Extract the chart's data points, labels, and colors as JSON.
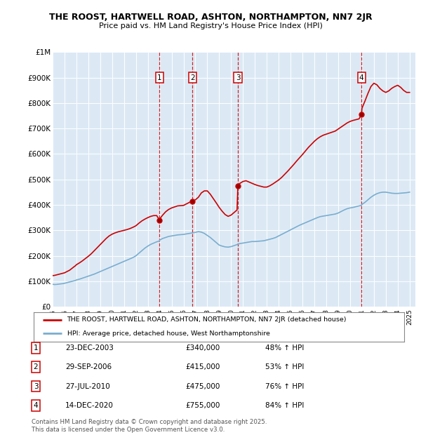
{
  "title1": "THE ROOST, HARTWELL ROAD, ASHTON, NORTHAMPTON, NN7 2JR",
  "title2": "Price paid vs. HM Land Registry's House Price Index (HPI)",
  "ylim": [
    0,
    1000000
  ],
  "yticks": [
    0,
    100000,
    200000,
    300000,
    400000,
    500000,
    600000,
    700000,
    800000,
    900000,
    1000000
  ],
  "ytick_labels": [
    "£0",
    "£100K",
    "£200K",
    "£300K",
    "£400K",
    "£500K",
    "£600K",
    "£700K",
    "£800K",
    "£900K",
    "£1M"
  ],
  "xlim_start": 1995.0,
  "xlim_end": 2025.5,
  "plot_bg_color": "#dce9f5",
  "fig_bg_color": "#ffffff",
  "red_line_color": "#cc0000",
  "blue_line_color": "#7aadcf",
  "sale_dates": [
    2003.98,
    2006.75,
    2010.57,
    2020.96
  ],
  "sale_prices": [
    340000,
    415000,
    475000,
    755000
  ],
  "sale_labels": [
    "1",
    "2",
    "3",
    "4"
  ],
  "sale_date_strs": [
    "23-DEC-2003",
    "29-SEP-2006",
    "27-JUL-2010",
    "14-DEC-2020"
  ],
  "sale_pct": [
    "48% ↑ HPI",
    "53% ↑ HPI",
    "76% ↑ HPI",
    "84% ↑ HPI"
  ],
  "legend_label_red": "THE ROOST, HARTWELL ROAD, ASHTON, NORTHAMPTON, NN7 2JR (detached house)",
  "legend_label_blue": "HPI: Average price, detached house, West Northamptonshire",
  "footer": "Contains HM Land Registry data © Crown copyright and database right 2025.\nThis data is licensed under the Open Government Licence v3.0.",
  "hpi_x": [
    1995.0,
    1995.08,
    1995.17,
    1995.25,
    1995.33,
    1995.42,
    1995.5,
    1995.58,
    1995.67,
    1995.75,
    1995.83,
    1995.92,
    1996.0,
    1996.08,
    1996.17,
    1996.25,
    1996.33,
    1996.42,
    1996.5,
    1996.58,
    1996.67,
    1996.75,
    1996.83,
    1996.92,
    1997.0,
    1997.25,
    1997.5,
    1997.75,
    1998.0,
    1998.25,
    1998.5,
    1998.75,
    1999.0,
    1999.25,
    1999.5,
    1999.75,
    2000.0,
    2000.25,
    2000.5,
    2000.75,
    2001.0,
    2001.25,
    2001.5,
    2001.75,
    2002.0,
    2002.25,
    2002.5,
    2002.75,
    2003.0,
    2003.25,
    2003.5,
    2003.75,
    2003.98,
    2004.0,
    2004.25,
    2004.5,
    2004.75,
    2005.0,
    2005.25,
    2005.5,
    2005.75,
    2006.0,
    2006.25,
    2006.5,
    2006.75,
    2007.0,
    2007.25,
    2007.5,
    2007.75,
    2008.0,
    2008.25,
    2008.5,
    2008.75,
    2009.0,
    2009.25,
    2009.5,
    2009.75,
    2010.0,
    2010.25,
    2010.5,
    2010.57,
    2010.75,
    2011.0,
    2011.25,
    2011.5,
    2011.75,
    2012.0,
    2012.25,
    2012.5,
    2012.75,
    2013.0,
    2013.25,
    2013.5,
    2013.75,
    2014.0,
    2014.25,
    2014.5,
    2014.75,
    2015.0,
    2015.25,
    2015.5,
    2015.75,
    2016.0,
    2016.25,
    2016.5,
    2016.75,
    2017.0,
    2017.25,
    2017.5,
    2017.75,
    2018.0,
    2018.25,
    2018.5,
    2018.75,
    2019.0,
    2019.25,
    2019.5,
    2019.75,
    2020.0,
    2020.25,
    2020.5,
    2020.75,
    2020.96,
    2021.0,
    2021.25,
    2021.5,
    2021.75,
    2022.0,
    2022.25,
    2022.5,
    2022.75,
    2023.0,
    2023.25,
    2023.5,
    2023.75,
    2024.0,
    2024.25,
    2024.5,
    2024.75,
    2025.0
  ],
  "hpi_y": [
    88000,
    87500,
    87000,
    87200,
    87500,
    88000,
    88500,
    89000,
    89500,
    90000,
    90500,
    91000,
    92000,
    93000,
    94000,
    95000,
    96000,
    97000,
    98000,
    99000,
    100000,
    101000,
    102000,
    103000,
    105000,
    108000,
    112000,
    116000,
    120000,
    124000,
    128000,
    133000,
    138000,
    143000,
    148000,
    153000,
    158000,
    163000,
    168000,
    173000,
    178000,
    183000,
    188000,
    193000,
    200000,
    210000,
    220000,
    230000,
    238000,
    245000,
    250000,
    255000,
    258000,
    262000,
    268000,
    272000,
    276000,
    278000,
    280000,
    282000,
    283000,
    284000,
    286000,
    288000,
    290000,
    292000,
    295000,
    293000,
    288000,
    280000,
    272000,
    262000,
    252000,
    242000,
    238000,
    235000,
    234000,
    236000,
    240000,
    244000,
    246000,
    248000,
    250000,
    252000,
    254000,
    256000,
    256000,
    257000,
    258000,
    259000,
    262000,
    265000,
    268000,
    272000,
    278000,
    284000,
    290000,
    296000,
    302000,
    308000,
    314000,
    320000,
    325000,
    330000,
    335000,
    340000,
    345000,
    350000,
    354000,
    356000,
    358000,
    360000,
    362000,
    364000,
    368000,
    374000,
    380000,
    385000,
    388000,
    390000,
    393000,
    396000,
    398000,
    402000,
    410000,
    420000,
    430000,
    438000,
    444000,
    448000,
    450000,
    450000,
    448000,
    446000,
    445000,
    445000,
    446000,
    447000,
    448000,
    450000
  ],
  "red_x": [
    1995.0,
    1995.08,
    1995.17,
    1995.25,
    1995.33,
    1995.42,
    1995.5,
    1995.58,
    1995.67,
    1995.75,
    1995.83,
    1995.92,
    1996.0,
    1996.08,
    1996.17,
    1996.25,
    1996.33,
    1996.42,
    1996.5,
    1996.58,
    1996.67,
    1996.75,
    1996.83,
    1996.92,
    1997.0,
    1997.25,
    1997.5,
    1997.75,
    1998.0,
    1998.25,
    1998.5,
    1998.75,
    1999.0,
    1999.25,
    1999.5,
    1999.75,
    2000.0,
    2000.25,
    2000.5,
    2000.75,
    2001.0,
    2001.25,
    2001.5,
    2001.75,
    2002.0,
    2002.25,
    2002.5,
    2002.75,
    2003.0,
    2003.25,
    2003.5,
    2003.75,
    2003.98,
    2004.0,
    2004.25,
    2004.5,
    2004.75,
    2005.0,
    2005.25,
    2005.5,
    2005.75,
    2006.0,
    2006.25,
    2006.5,
    2006.75,
    2007.0,
    2007.25,
    2007.5,
    2007.75,
    2008.0,
    2008.25,
    2008.5,
    2008.75,
    2009.0,
    2009.25,
    2009.5,
    2009.75,
    2010.0,
    2010.25,
    2010.5,
    2010.57,
    2010.75,
    2011.0,
    2011.25,
    2011.5,
    2011.75,
    2012.0,
    2012.25,
    2012.5,
    2012.75,
    2013.0,
    2013.25,
    2013.5,
    2013.75,
    2014.0,
    2014.25,
    2014.5,
    2014.75,
    2015.0,
    2015.25,
    2015.5,
    2015.75,
    2016.0,
    2016.25,
    2016.5,
    2016.75,
    2017.0,
    2017.25,
    2017.5,
    2017.75,
    2018.0,
    2018.25,
    2018.5,
    2018.75,
    2019.0,
    2019.25,
    2019.5,
    2019.75,
    2020.0,
    2020.25,
    2020.5,
    2020.75,
    2020.96,
    2021.0,
    2021.25,
    2021.5,
    2021.75,
    2022.0,
    2022.25,
    2022.5,
    2022.75,
    2023.0,
    2023.25,
    2023.5,
    2023.75,
    2024.0,
    2024.25,
    2024.5,
    2024.75,
    2025.0
  ],
  "red_y": [
    122000,
    122500,
    123000,
    124000,
    125000,
    126000,
    127000,
    128000,
    129000,
    130000,
    131000,
    132000,
    133000,
    135000,
    137000,
    139000,
    141000,
    143000,
    146000,
    149000,
    152000,
    155000,
    158000,
    161000,
    165000,
    172000,
    180000,
    189000,
    198000,
    208000,
    220000,
    232000,
    244000,
    256000,
    268000,
    278000,
    285000,
    290000,
    294000,
    297000,
    300000,
    303000,
    307000,
    312000,
    318000,
    328000,
    337000,
    344000,
    350000,
    355000,
    358000,
    358000,
    340000,
    345000,
    360000,
    373000,
    382000,
    388000,
    392000,
    396000,
    397000,
    398000,
    404000,
    410000,
    415000,
    420000,
    430000,
    447000,
    455000,
    455000,
    442000,
    425000,
    408000,
    390000,
    375000,
    362000,
    355000,
    360000,
    370000,
    380000,
    475000,
    485000,
    492000,
    495000,
    490000,
    485000,
    480000,
    476000,
    473000,
    470000,
    470000,
    475000,
    482000,
    490000,
    498000,
    508000,
    520000,
    532000,
    545000,
    558000,
    572000,
    585000,
    598000,
    612000,
    626000,
    638000,
    650000,
    660000,
    668000,
    674000,
    678000,
    682000,
    686000,
    690000,
    698000,
    706000,
    714000,
    722000,
    728000,
    732000,
    735000,
    738000,
    755000,
    780000,
    808000,
    838000,
    865000,
    878000,
    872000,
    858000,
    848000,
    842000,
    848000,
    858000,
    865000,
    870000,
    862000,
    850000,
    842000,
    842000
  ]
}
